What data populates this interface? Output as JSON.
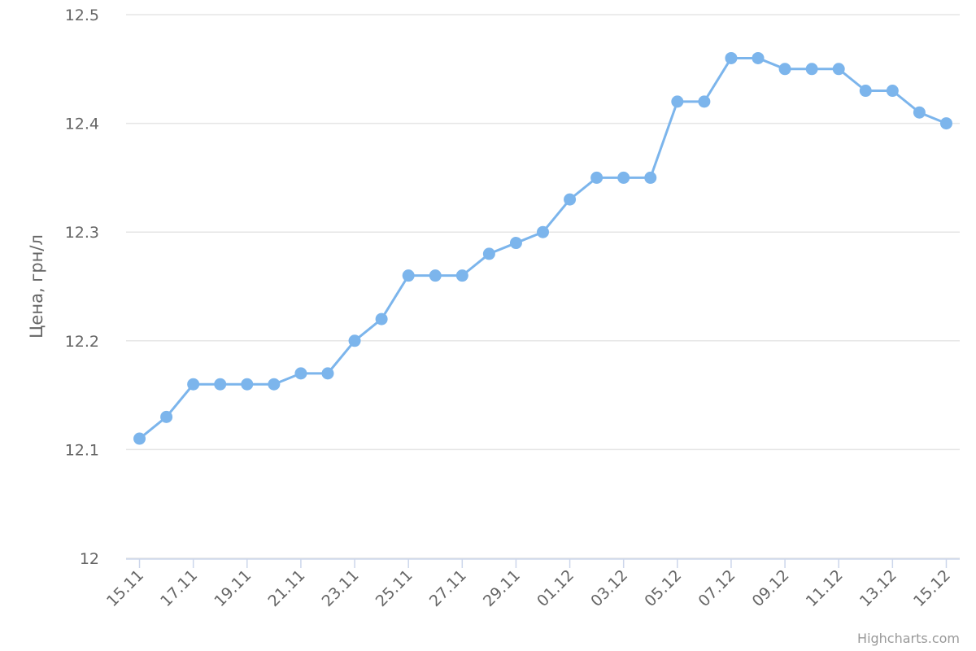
{
  "chart_data": {
    "type": "line",
    "y_axis_label": "Цена, грн/л",
    "credits": "Highcharts.com",
    "categories": [
      "15.11",
      null,
      "17.11",
      null,
      "19.11",
      null,
      "21.11",
      null,
      "23.11",
      null,
      "25.11",
      null,
      "27.11",
      null,
      "29.11",
      null,
      "01.12",
      null,
      "03.12",
      null,
      "05.12",
      null,
      "07.12",
      null,
      "09.12",
      null,
      "11.12",
      null,
      "13.12",
      null,
      "15.12"
    ],
    "series": [
      {
        "color": "#7cb5ec",
        "values": [
          12.11,
          12.13,
          12.16,
          12.16,
          12.16,
          12.16,
          12.17,
          12.17,
          12.2,
          12.22,
          12.26,
          12.26,
          12.26,
          12.28,
          12.29,
          12.3,
          12.33,
          12.35,
          12.35,
          12.35,
          12.42,
          12.42,
          12.46,
          12.46,
          12.45,
          12.45,
          12.45,
          12.43,
          12.43,
          12.41,
          12.4
        ]
      }
    ],
    "ylim": [
      12,
      12.5
    ],
    "yticks": [
      12,
      12.1,
      12.2,
      12.3,
      12.4,
      12.5
    ],
    "grid": true
  }
}
